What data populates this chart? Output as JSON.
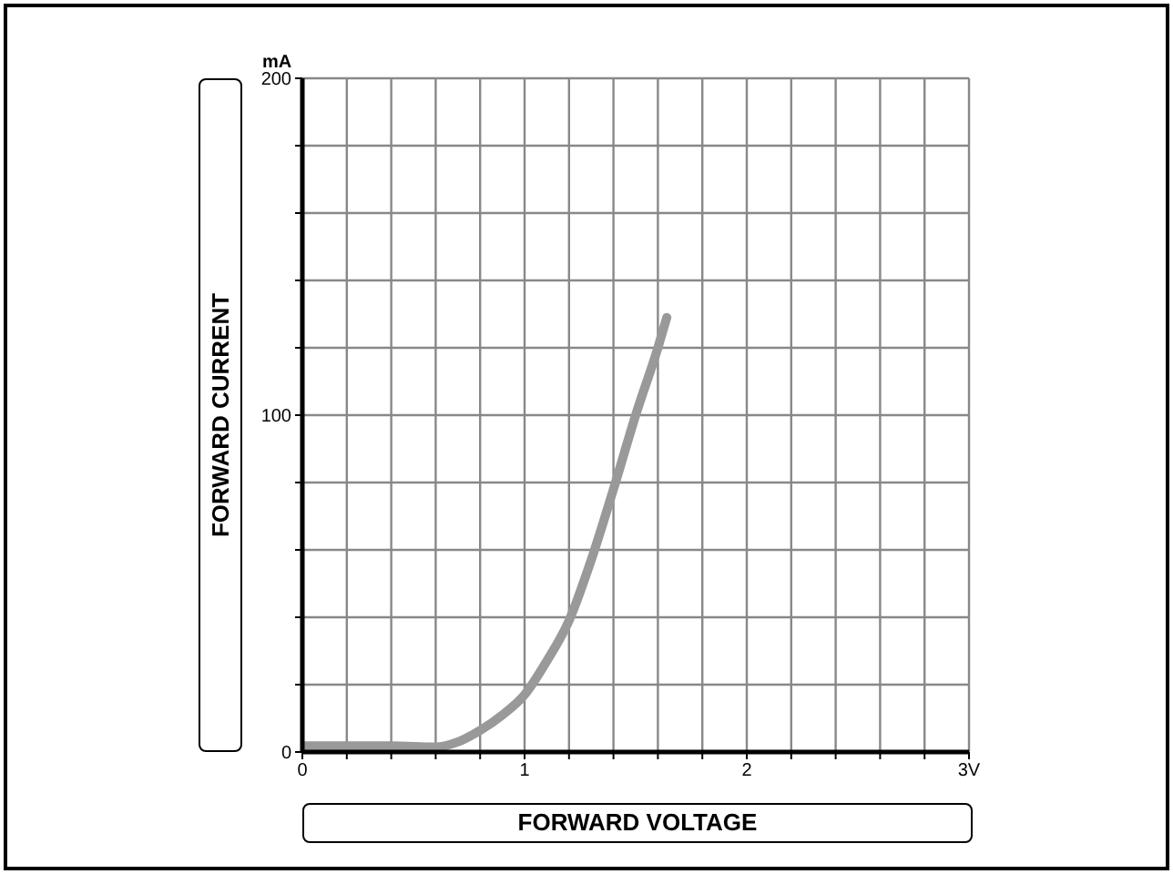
{
  "chart_data": {
    "type": "line",
    "xlabel": "FORWARD VOLTAGE",
    "ylabel": "FORWARD CURRENT",
    "annotations": [
      "mA"
    ],
    "x": [
      0,
      0.2,
      0.4,
      0.6,
      0.7,
      0.8,
      0.9,
      1.0,
      1.1,
      1.2,
      1.3,
      1.4,
      1.5,
      1.6,
      1.64
    ],
    "series": [
      {
        "color": "#999999",
        "values": [
          1.8,
          1.8,
          1.8,
          1.5,
          3,
          6.4,
          11,
          17,
          27,
          39,
          57,
          78,
          100,
          120,
          129
        ]
      }
    ],
    "xlim": [
      0,
      3
    ],
    "xticks": [
      0,
      {
        "value": 0.2,
        "label": null
      },
      {
        "value": 0.4,
        "label": null
      },
      {
        "value": 0.6,
        "label": null
      },
      {
        "value": 0.8,
        "label": null
      },
      1,
      {
        "value": 1.2,
        "label": null
      },
      {
        "value": 1.4,
        "label": null
      },
      {
        "value": 1.6,
        "label": null
      },
      {
        "value": 1.8,
        "label": null
      },
      2,
      {
        "value": 2.2,
        "label": null
      },
      {
        "value": 2.4,
        "label": null
      },
      {
        "value": 2.6,
        "label": null
      },
      {
        "value": 2.8,
        "label": null
      },
      {
        "value": 3,
        "label": "3V"
      }
    ],
    "ylim": [
      0,
      200
    ],
    "yticks": [
      0,
      {
        "value": 20,
        "label": null
      },
      {
        "value": 40,
        "label": null
      },
      {
        "value": 60,
        "label": null
      },
      {
        "value": 80,
        "label": null
      },
      100,
      {
        "value": 120,
        "label": null
      },
      {
        "value": 140,
        "label": null
      },
      {
        "value": 160,
        "label": null
      },
      {
        "value": 180,
        "label": null
      },
      200
    ],
    "grid": true,
    "legend": false,
    "marker": "none",
    "line_style": "solid"
  }
}
